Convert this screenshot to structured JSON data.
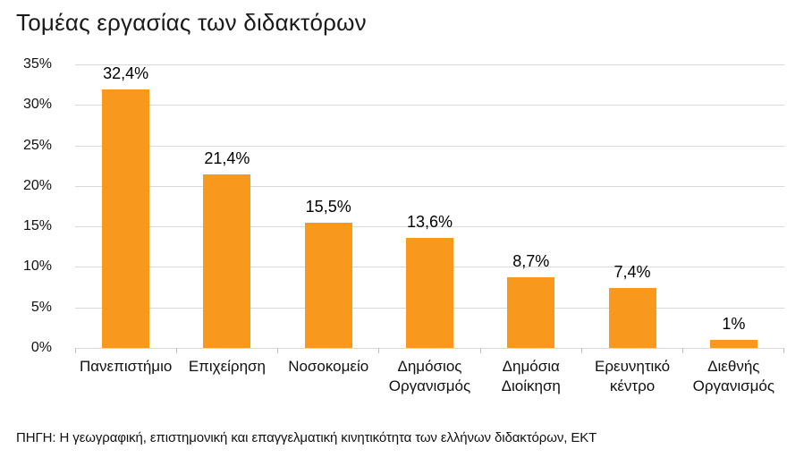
{
  "title": "Τομέας εργασίας των διδακτόρων",
  "source_note": "ΠΗΓΗ: Η γεωγραφική, επιστημονική και επαγγελματική κινητικότητα των ελλήνων διδακτόρων, ΕΚΤ",
  "colors": {
    "bar": "#F8981D",
    "gridline": "#D9D9D9",
    "axis_tick": "#BFBFBF",
    "text": "#111111"
  },
  "chart_data": {
    "type": "bar",
    "title": "Τομέας εργασίας των διδακτόρων",
    "categories": [
      "Πανεπιστήμιο",
      "Επιχείρηση",
      "Νοσοκομείο",
      "Δημόσιος Οργανισμός",
      "Δημόσια Διοίκηση",
      "Ερευνητικό κέντρο",
      "Διεθνής Οργανισμός"
    ],
    "values": [
      32.4,
      21.4,
      15.5,
      13.6,
      8.7,
      7.4,
      1
    ],
    "value_labels": [
      "32,4%",
      "21,4%",
      "15,5%",
      "13,6%",
      "8,7%",
      "7,4%",
      "1%"
    ],
    "yticks": [
      "35%",
      "30%",
      "25%",
      "20%",
      "15%",
      "10%",
      "5%",
      "0%"
    ],
    "ylim": [
      0,
      35
    ],
    "xlabel": "",
    "ylabel": "",
    "grid": true,
    "legend": false,
    "annotation_source": "ΠΗΓΗ: Η γεωγραφική, επιστημονική και επαγγελματική κινητικότητα των ελλήνων διδακτόρων, ΕΚΤ"
  }
}
